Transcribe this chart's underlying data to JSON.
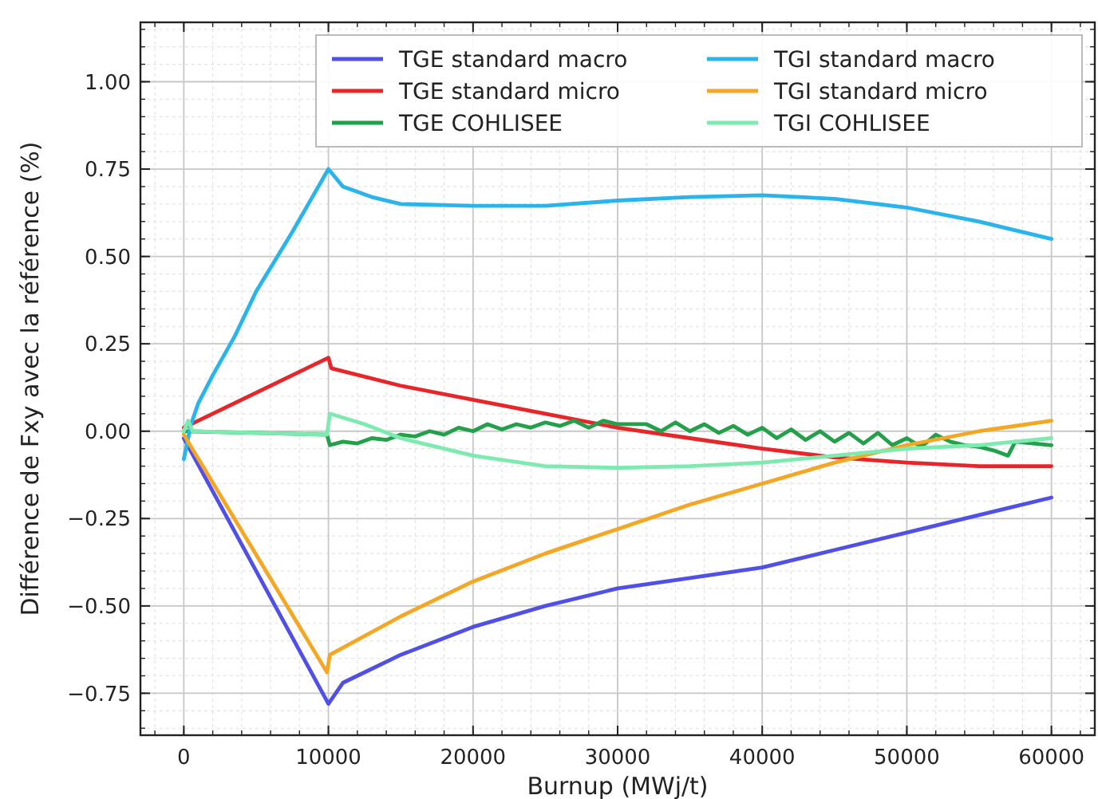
{
  "chart_data": {
    "type": "line",
    "xlabel": "Burnup (MWj/t)",
    "ylabel": "Différence de Fxy avec la référence (%)",
    "xlim": [
      -3000,
      63000
    ],
    "xticks": [
      0,
      10000,
      20000,
      30000,
      40000,
      50000,
      60000
    ],
    "ylim": [
      -0.87,
      1.17
    ],
    "yticks": [
      {
        "value": -0.75,
        "label": "−0.75"
      },
      {
        "value": -0.5,
        "label": "−0.50"
      },
      {
        "value": -0.25,
        "label": "−0.25"
      },
      {
        "value": 0,
        "label": "0.00"
      },
      {
        "value": 0.25,
        "label": "0.25"
      },
      {
        "value": 0.5,
        "label": "0.50"
      },
      {
        "value": 0.75,
        "label": "0.75"
      },
      {
        "value": 1,
        "label": "1.00"
      }
    ],
    "grid": true,
    "legend": "top right",
    "marker": "none",
    "line_style": "solid",
    "series": [
      {
        "name": "TGE standard macro",
        "color": "#5050e8",
        "x": [
          0,
          10000,
          11000,
          13000,
          15000,
          17500,
          20000,
          25000,
          30000,
          35000,
          40000,
          45000,
          50000,
          55000,
          60000
        ],
        "values": [
          -0.02,
          -0.78,
          -0.72,
          -0.68,
          -0.64,
          -0.6,
          -0.56,
          -0.5,
          -0.45,
          -0.42,
          -0.39,
          -0.34,
          -0.29,
          -0.24,
          -0.19
        ]
      },
      {
        "name": "TGE standard micro",
        "color": "#e8262a",
        "x": [
          0,
          10000,
          10200,
          15000,
          20000,
          25000,
          30000,
          35000,
          40000,
          45000,
          50000,
          55000,
          60000
        ],
        "values": [
          0.01,
          0.21,
          0.18,
          0.13,
          0.09,
          0.05,
          0.01,
          -0.02,
          -0.05,
          -0.075,
          -0.09,
          -0.1,
          -0.1
        ]
      },
      {
        "name": "TGE COHLISEE",
        "color": "#23a04a",
        "x": [
          0,
          5000,
          9900,
          10100,
          11000,
          12000,
          13000,
          14000,
          15000,
          16000,
          17000,
          18000,
          19000,
          20000,
          21000,
          22000,
          23000,
          24000,
          25000,
          26000,
          27000,
          28000,
          29000,
          30000,
          32000,
          33000,
          34000,
          35000,
          36000,
          37000,
          38000,
          39000,
          40000,
          41000,
          42000,
          43000,
          44000,
          45000,
          46000,
          47000,
          48000,
          49000,
          50000,
          51000,
          52000,
          53000,
          54000,
          55000,
          56000,
          57000,
          57500,
          60000
        ],
        "values": [
          0,
          -0.005,
          -0.01,
          -0.04,
          -0.03,
          -0.035,
          -0.02,
          -0.025,
          -0.01,
          -0.015,
          0,
          -0.01,
          0.01,
          0,
          0.02,
          0.005,
          0.02,
          0.01,
          0.025,
          0.015,
          0.03,
          0.01,
          0.03,
          0.02,
          0.02,
          0,
          0.025,
          0,
          0.02,
          -0.005,
          0.015,
          -0.01,
          0.01,
          -0.02,
          0.005,
          -0.025,
          0,
          -0.03,
          -0.005,
          -0.035,
          -0.005,
          -0.04,
          -0.02,
          -0.045,
          -0.01,
          -0.03,
          -0.04,
          -0.045,
          -0.055,
          -0.07,
          -0.03,
          -0.04
        ]
      },
      {
        "name": "TGI standard macro",
        "color": "#2ab4ec",
        "x": [
          0,
          500,
          1000,
          2000,
          3500,
          5000,
          7500,
          10000,
          11000,
          13000,
          15000,
          20000,
          25000,
          30000,
          35000,
          40000,
          45000,
          50000,
          55000,
          60000
        ],
        "values": [
          -0.08,
          0.02,
          0.08,
          0.16,
          0.27,
          0.4,
          0.57,
          0.75,
          0.7,
          0.67,
          0.65,
          0.645,
          0.645,
          0.66,
          0.67,
          0.675,
          0.665,
          0.64,
          0.6,
          0.55
        ]
      },
      {
        "name": "TGI standard micro",
        "color": "#f5a623",
        "x": [
          0,
          9900,
          10100,
          15000,
          20000,
          25000,
          30000,
          35000,
          40000,
          45000,
          50000,
          55000,
          60000
        ],
        "values": [
          -0.01,
          -0.69,
          -0.64,
          -0.53,
          -0.43,
          -0.35,
          -0.28,
          -0.21,
          -0.15,
          -0.09,
          -0.04,
          0,
          0.03
        ]
      },
      {
        "name": "TGI COHLISEE",
        "color": "#7debb0",
        "x": [
          0,
          300,
          600,
          5000,
          9900,
          10100,
          12500,
          15000,
          20000,
          25000,
          30000,
          35000,
          40000,
          45000,
          50000,
          55000,
          60000
        ],
        "values": [
          0,
          0.03,
          0,
          -0.005,
          -0.01,
          0.05,
          0.02,
          -0.02,
          -0.07,
          -0.1,
          -0.105,
          -0.1,
          -0.09,
          -0.07,
          -0.05,
          -0.04,
          -0.02
        ]
      }
    ]
  }
}
